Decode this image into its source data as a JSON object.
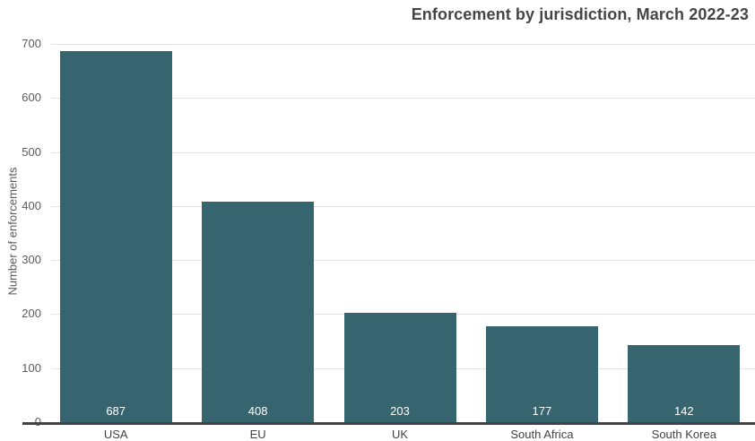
{
  "title": "Enforcement by jurisdiction, March 2022-23",
  "chart_data": {
    "type": "bar",
    "title": "Enforcement by jurisdiction, March 2022-23",
    "categories": [
      "USA",
      "EU",
      "UK",
      "South Africa",
      "South Korea"
    ],
    "values": [
      687,
      408,
      203,
      177,
      142
    ],
    "xlabel": "",
    "ylabel": "Number of enforcements",
    "ylim": [
      0,
      700
    ],
    "yticks": [
      0,
      100,
      200,
      300,
      400,
      500,
      600,
      700
    ],
    "grid": "horizontal",
    "legend_position": "none",
    "value_labels": "inside-bottom"
  },
  "colors": {
    "bar": "#36646F",
    "title_text": "#454545",
    "tick_text": "#5a5a5a",
    "category_text": "#424242",
    "gridline": "#e3e3e3",
    "axis_line": "#424242",
    "value_label_text": "#ffffff",
    "background": "#ffffff"
  }
}
